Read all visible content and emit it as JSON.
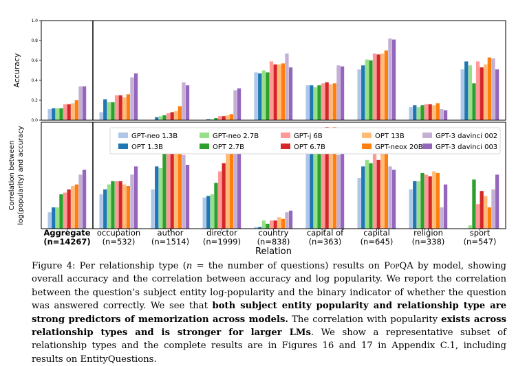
{
  "chart_data": {
    "type": "bar",
    "categories": [
      "Aggregate",
      "occupation",
      "author",
      "director",
      "country",
      "capital of",
      "capital",
      "religion",
      "sport"
    ],
    "category_counts": [
      "(n=14267)",
      "(n=532)",
      "(n=1514)",
      "(n=1999)",
      "(n=838)",
      "(n=363)",
      "(n=645)",
      "(n=338)",
      "(n=547)"
    ],
    "xlabel": "Relation",
    "series_names": [
      "GPT-neo 1.3B",
      "OPT 1.3B",
      "GPT-neo 2.7B",
      "OPT 2.7B",
      "GPT-j 6B",
      "OPT 6.7B",
      "OPT 13B",
      "GPT-neox 20B",
      "GPT-3 davinci 002",
      "GPT-3 davinci 003"
    ],
    "colors": [
      "#aec7e8",
      "#1f77b4",
      "#98df8a",
      "#2ca02c",
      "#ff9896",
      "#d62728",
      "#ffbb78",
      "#ff7f0e",
      "#c5b0d5",
      "#9467bd"
    ],
    "legend_placement": "top-right",
    "panels": [
      {
        "ylabel": "Accuracy",
        "ylim": [
          0,
          1.0
        ],
        "yticks": [
          "0.0",
          "0.2",
          "0.4",
          "0.6",
          "0.8",
          "1.0"
        ],
        "values": [
          [
            0.11,
            0.12,
            0.12,
            0.12,
            0.16,
            0.16,
            0.17,
            0.2,
            0.34,
            0.34
          ],
          [
            0.08,
            0.21,
            0.18,
            0.18,
            0.25,
            0.25,
            0.23,
            0.26,
            0.43,
            0.47
          ],
          [
            0.0,
            0.03,
            0.04,
            0.05,
            0.07,
            0.08,
            0.09,
            0.14,
            0.38,
            0.35
          ],
          [
            0.0,
            0.01,
            0.01,
            0.02,
            0.04,
            0.04,
            0.05,
            0.06,
            0.3,
            0.32
          ],
          [
            0.48,
            0.47,
            0.5,
            0.48,
            0.59,
            0.56,
            0.56,
            0.57,
            0.67,
            0.53
          ],
          [
            0.35,
            0.35,
            0.33,
            0.35,
            0.37,
            0.38,
            0.36,
            0.37,
            0.55,
            0.54
          ],
          [
            0.51,
            0.55,
            0.61,
            0.6,
            0.67,
            0.66,
            0.67,
            0.7,
            0.82,
            0.81
          ],
          [
            0.13,
            0.15,
            0.13,
            0.15,
            0.16,
            0.16,
            0.15,
            0.17,
            0.11,
            0.1
          ],
          [
            0.51,
            0.59,
            0.55,
            0.37,
            0.59,
            0.53,
            0.56,
            0.63,
            0.62,
            0.51
          ]
        ]
      },
      {
        "ylabel": "Correlation between log(popularity) and accuracy",
        "ylim": [
          0,
          0.65
        ],
        "yticks": [],
        "values": [
          [
            0.1,
            0.13,
            0.13,
            0.21,
            0.22,
            0.24,
            0.26,
            0.27,
            0.33,
            0.36
          ],
          [
            0.21,
            0.24,
            0.27,
            0.29,
            0.29,
            0.29,
            0.27,
            0.26,
            0.33,
            0.38
          ],
          [
            0.24,
            0.38,
            0.37,
            0.46,
            0.5,
            0.51,
            0.51,
            0.53,
            0.45,
            0.39
          ],
          [
            0.19,
            0.2,
            0.21,
            0.28,
            0.35,
            0.4,
            0.46,
            0.52,
            0.6,
            0.57
          ],
          [
            0.01,
            0.01,
            0.05,
            0.03,
            0.05,
            0.05,
            0.07,
            0.06,
            0.1,
            0.11
          ],
          [
            0.56,
            0.57,
            0.57,
            0.61,
            0.61,
            0.62,
            0.61,
            0.62,
            0.45,
            0.5
          ],
          [
            0.31,
            0.38,
            0.42,
            0.4,
            0.51,
            0.42,
            0.47,
            0.47,
            0.38,
            0.36
          ],
          [
            0.24,
            0.29,
            0.29,
            0.34,
            0.33,
            0.32,
            0.35,
            0.34,
            0.13,
            0.27
          ],
          [
            0.0,
            0.0,
            0.02,
            0.3,
            0.15,
            0.23,
            0.2,
            0.13,
            0.24,
            0.33
          ]
        ]
      }
    ]
  },
  "caption": {
    "label": "Figure 4:",
    "p1": " Per relationship type (",
    "n_symbol": "n",
    "p2": " = the number of questions) results on ",
    "dataset": "PopQA",
    "p3": " by model, showing overall accuracy and the correlation between accuracy and log popularity. We report the correlation between the question’s subject entity log-popularity and the binary indicator of whether the question was answered correctly. We see that ",
    "bold1": "both subject entity popularity and relationship type are strong predictors of memorization across models.",
    "p4": " The correlation with popularity ",
    "bold2": "exists across relationship types and is stronger for larger LMs",
    "p5": ". We show a representative subset of relationship types and the complete results are in Figures 16 and 17 in Appendix C.1, including results on EntityQuestions."
  }
}
